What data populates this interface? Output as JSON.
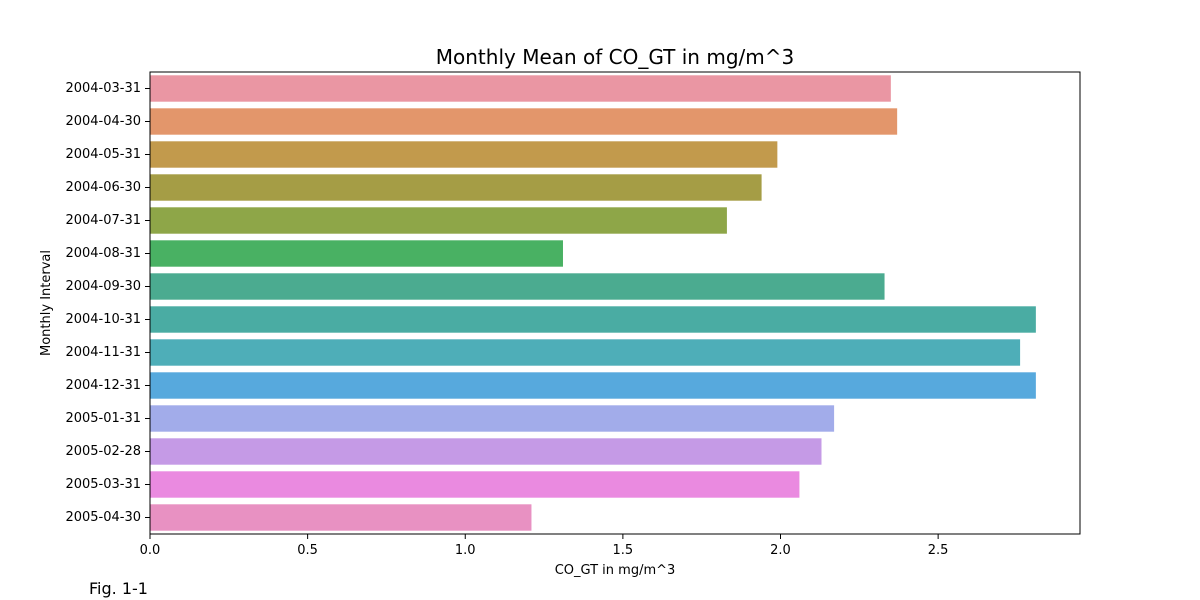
{
  "chart_data": {
    "type": "bar",
    "orientation": "horizontal",
    "title": "Monthly Mean of CO_GT in mg/m^3",
    "xlabel": "CO_GT in mg/m^3",
    "ylabel": "Monthly Interval",
    "xlim": [
      0,
      2.95
    ],
    "xticks": [
      0.0,
      0.5,
      1.0,
      1.5,
      2.0,
      2.5
    ],
    "xtick_labels": [
      "0.0",
      "0.5",
      "1.0",
      "1.5",
      "2.0",
      "2.5"
    ],
    "grid": false,
    "categories": [
      "2004-03-31",
      "2004-04-30",
      "2004-05-31",
      "2004-06-30",
      "2004-07-31",
      "2004-08-31",
      "2004-09-30",
      "2004-10-31",
      "2004-11-31",
      "2004-12-31",
      "2005-01-31",
      "2005-02-28",
      "2005-03-31",
      "2005-04-30"
    ],
    "values": [
      2.35,
      2.37,
      1.99,
      1.94,
      1.83,
      1.31,
      2.33,
      2.81,
      2.76,
      2.81,
      2.17,
      2.13,
      2.06,
      1.21
    ],
    "colors": [
      "#ea96a3",
      "#e3966b",
      "#c29a4c",
      "#a59d45",
      "#8ea648",
      "#49b163",
      "#4bab90",
      "#4aaca3",
      "#4eaeb8",
      "#57a9dd",
      "#a2acea",
      "#c59ae6",
      "#ea8ae0",
      "#e891c2"
    ]
  },
  "caption": "Fig. 1-1"
}
